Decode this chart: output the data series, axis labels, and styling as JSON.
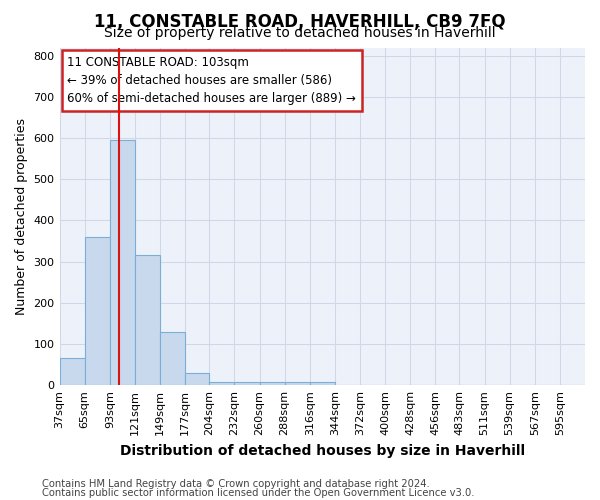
{
  "title": "11, CONSTABLE ROAD, HAVERHILL, CB9 7FQ",
  "subtitle": "Size of property relative to detached houses in Haverhill",
  "xlabel": "Distribution of detached houses by size in Haverhill",
  "ylabel": "Number of detached properties",
  "footnote1": "Contains HM Land Registry data © Crown copyright and database right 2024.",
  "footnote2": "Contains public sector information licensed under the Open Government Licence v3.0.",
  "annotation_line1": "11 CONSTABLE ROAD: 103sqm",
  "annotation_line2": "← 39% of detached houses are smaller (586)",
  "annotation_line3": "60% of semi-detached houses are larger (889) →",
  "property_size": 103,
  "bar_labels": [
    "37sqm",
    "65sqm",
    "93sqm",
    "121sqm",
    "149sqm",
    "177sqm",
    "204sqm",
    "232sqm",
    "260sqm",
    "288sqm",
    "316sqm",
    "344sqm",
    "372sqm",
    "400sqm",
    "428sqm",
    "456sqm",
    "483sqm",
    "511sqm",
    "539sqm",
    "567sqm",
    "595sqm"
  ],
  "bar_values": [
    65,
    360,
    595,
    315,
    130,
    30,
    8,
    8,
    8,
    8,
    8,
    0,
    0,
    0,
    0,
    0,
    0,
    0,
    0,
    0,
    0
  ],
  "bar_edges": [
    37,
    65,
    93,
    121,
    149,
    177,
    204,
    232,
    260,
    288,
    316,
    344,
    372,
    400,
    428,
    456,
    483,
    511,
    539,
    567,
    595,
    623
  ],
  "bar_color": "#c8d9ee",
  "bar_edge_color": "#7aaed4",
  "red_line_x": 103,
  "ylim": [
    0,
    820
  ],
  "yticks": [
    0,
    100,
    200,
    300,
    400,
    500,
    600,
    700,
    800
  ],
  "grid_color": "#d0d8e8",
  "bg_color": "#edf2fa",
  "annotation_box_facecolor": "#ffffff",
  "annotation_box_edgecolor": "#cc2222",
  "red_line_color": "#dd1111",
  "title_fontsize": 12,
  "subtitle_fontsize": 10,
  "xlabel_fontsize": 10,
  "ylabel_fontsize": 9,
  "tick_fontsize": 8,
  "annotation_fontsize": 8.5,
  "footnote_fontsize": 7.2
}
